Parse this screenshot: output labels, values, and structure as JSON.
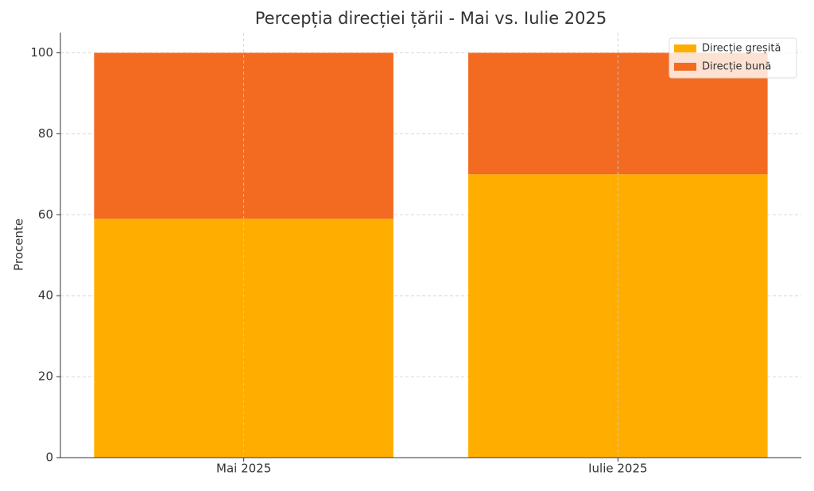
{
  "chart_data": {
    "type": "bar",
    "stacked": true,
    "title": "Percepția direcției țării - Mai vs. Iulie 2025",
    "y_label": "Procente",
    "categories": [
      "Mai 2025",
      "Iulie 2025"
    ],
    "series": [
      {
        "name": "Direcție greșită",
        "color": "#ffae00",
        "values": [
          59,
          70
        ]
      },
      {
        "name": "Direcție bună",
        "color": "#f26b21",
        "values": [
          41,
          30
        ]
      }
    ],
    "ylim": [
      0,
      105
    ],
    "yticks": [
      0,
      20,
      40,
      60,
      80,
      100
    ],
    "grid": true,
    "legend": "upper right"
  }
}
